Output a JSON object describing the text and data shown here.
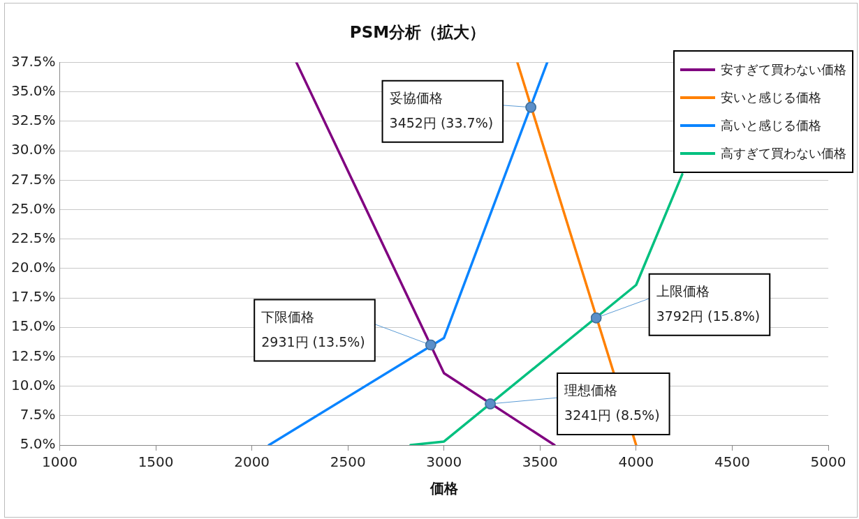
{
  "chart_data": {
    "type": "line",
    "title": "PSM分析（拡大）",
    "xlabel": "価格",
    "xlim": [
      1000,
      5000
    ],
    "xticks": [
      1000,
      1500,
      2000,
      2500,
      3000,
      3500,
      4000,
      4500,
      5000
    ],
    "ylim": [
      5,
      37.5
    ],
    "yticks": [
      {
        "value": 5,
        "label": "5.0%"
      },
      {
        "value": 7.5,
        "label": "7.5%"
      },
      {
        "value": 10,
        "label": "10.0%"
      },
      {
        "value": 12.5,
        "label": "12.5%"
      },
      {
        "value": 15,
        "label": "15.0%"
      },
      {
        "value": 17.5,
        "label": "17.5%"
      },
      {
        "value": 20,
        "label": "20.0%"
      },
      {
        "value": 22.5,
        "label": "22.5%"
      },
      {
        "value": 25,
        "label": "25.0%"
      },
      {
        "value": 27.5,
        "label": "27.5%"
      },
      {
        "value": 30,
        "label": "30.0%"
      },
      {
        "value": 32.5,
        "label": "32.5%"
      },
      {
        "value": 35,
        "label": "35.0%"
      },
      {
        "value": 37.5,
        "label": "37.5%"
      }
    ],
    "grid": "y",
    "legend": "top right",
    "marker": "none",
    "line_style": "solid",
    "series": [
      {
        "name": "安すぎて買わない価格",
        "color": "#800080",
        "x": [
          2232,
          3000,
          3575
        ],
        "values": [
          37.5,
          11.1,
          5.0
        ]
      },
      {
        "name": "安いと感じる価格",
        "color": "#ff8000",
        "x": [
          3382,
          4000
        ],
        "values": [
          37.5,
          5.0
        ]
      },
      {
        "name": "高いと感じる価格",
        "color": "#0a84ff",
        "x": [
          2089,
          3000,
          3537
        ],
        "values": [
          5.0,
          14.1,
          37.5
        ]
      },
      {
        "name": "高すぎて買わない価格",
        "color": "#00c07f",
        "x": [
          2826,
          3000,
          4000,
          4240
        ],
        "values": [
          5.0,
          5.3,
          18.6,
          28.0
        ]
      },
      {
        "type": "scatter",
        "marker": "circle",
        "color": "#5b8fc9",
        "x": [
          2931,
          3241,
          3452,
          3792
        ],
        "values": [
          13.5,
          8.5,
          33.7,
          15.8
        ]
      }
    ],
    "annotations": [
      {
        "text": "下限価格\n2931円 (13.5%)",
        "x": 2931,
        "y": 13.5
      },
      {
        "text": "理想価格\n3241円 (8.5%)",
        "x": 3241,
        "y": 8.5
      },
      {
        "text": "妥協価格\n3452円 (33.7%)",
        "x": 3452,
        "y": 33.7
      },
      {
        "text": "上限価格\n3792円 (15.8%)",
        "x": 3792,
        "y": 15.8
      }
    ]
  }
}
